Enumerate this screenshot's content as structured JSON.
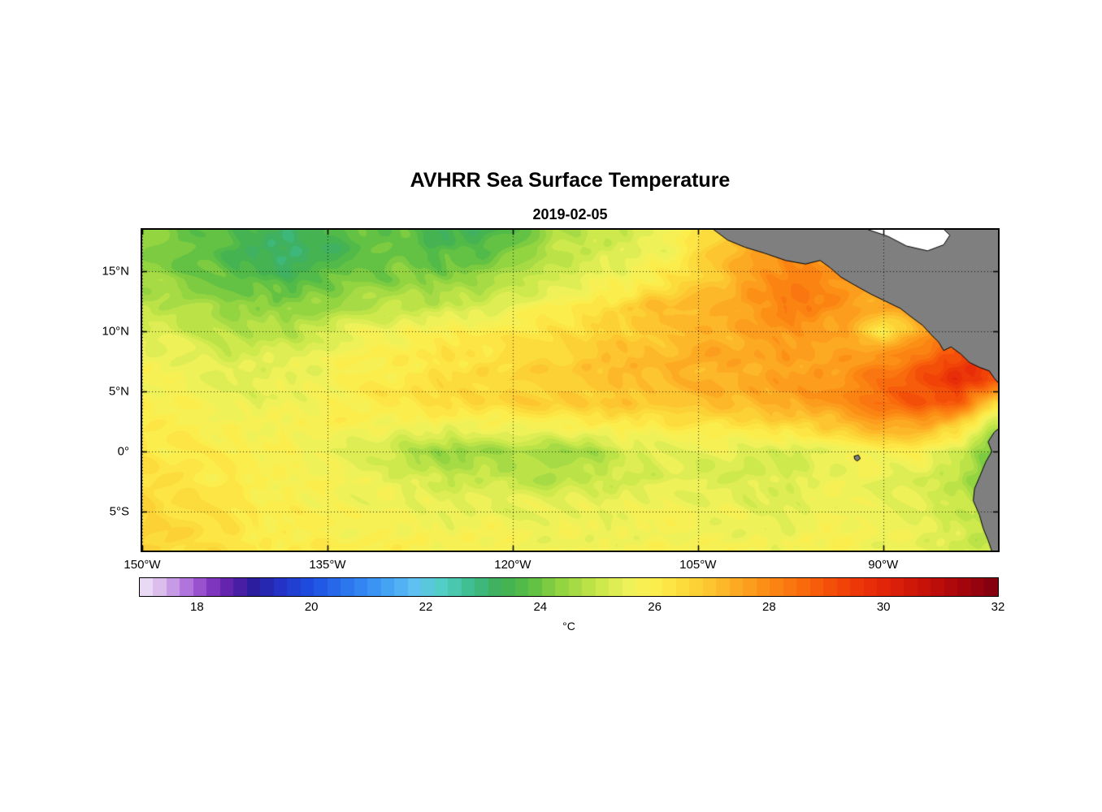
{
  "chart_data": {
    "type": "heatmap",
    "title": "AVHRR Sea Surface Temperature",
    "date": "2019-02-05",
    "x_axis": {
      "ticks": [
        -150,
        -135,
        -120,
        -105,
        -90
      ],
      "tick_labels": [
        "150°W",
        "135°W",
        "120°W",
        "105°W",
        "90°W"
      ],
      "lim": [
        -150,
        -80.7
      ]
    },
    "y_axis": {
      "ticks": [
        15,
        10,
        5,
        0,
        -5
      ],
      "tick_labels": [
        "15°N",
        "10°N",
        "5°N",
        "0°",
        "5°S"
      ],
      "lim": [
        -8.25,
        18.45
      ]
    },
    "colorbar": {
      "min": 17,
      "max": 32,
      "levels": 64,
      "ticks": [
        18,
        20,
        22,
        24,
        26,
        28,
        30,
        32
      ],
      "label": "°C"
    },
    "colormap": [
      [
        17.0,
        "#EFE6F7"
      ],
      [
        17.4,
        "#D9B8EC"
      ],
      [
        17.8,
        "#B377DE"
      ],
      [
        18.2,
        "#8A3BC4"
      ],
      [
        18.6,
        "#5B1FA8"
      ],
      [
        19.0,
        "#2A1E9E"
      ],
      [
        19.5,
        "#2334C8"
      ],
      [
        20.0,
        "#1D4FE0"
      ],
      [
        20.6,
        "#2B74EE"
      ],
      [
        21.2,
        "#3E9AF5"
      ],
      [
        21.8,
        "#5FC0F2"
      ],
      [
        22.3,
        "#52CFC4"
      ],
      [
        22.8,
        "#3DBD8C"
      ],
      [
        23.3,
        "#3FAF58"
      ],
      [
        23.8,
        "#57BE44"
      ],
      [
        24.3,
        "#8CD140"
      ],
      [
        25.0,
        "#C8E84A"
      ],
      [
        25.6,
        "#F2F25A"
      ],
      [
        26.0,
        "#FBEE4D"
      ],
      [
        26.5,
        "#FCDC3C"
      ],
      [
        27.0,
        "#FDC32E"
      ],
      [
        27.5,
        "#FDA621"
      ],
      [
        28.0,
        "#FC8A14"
      ],
      [
        28.6,
        "#F96A0D"
      ],
      [
        29.2,
        "#F34708"
      ],
      [
        30.0,
        "#E22408"
      ],
      [
        30.8,
        "#C4100A"
      ],
      [
        31.4,
        "#A3050C"
      ],
      [
        32.0,
        "#7E0010"
      ]
    ],
    "grid": {
      "lons": [
        -150,
        -147,
        -144,
        -141,
        -138,
        -135,
        -132,
        -129,
        -126,
        -123,
        -120,
        -117,
        -114,
        -111,
        -108,
        -105,
        -102,
        -99,
        -96,
        -93,
        -90,
        -87,
        -84,
        -81
      ],
      "lats": [
        18.45,
        16,
        14,
        12,
        10,
        8,
        6,
        4,
        2,
        0,
        -2,
        -4,
        -6,
        -8.25
      ],
      "sst": [
        [
          24.5,
          24.2,
          23.9,
          23.5,
          23.2,
          23.5,
          23.8,
          23.8,
          23.4,
          23.3,
          23.8,
          24.6,
          25.0,
          25.2,
          25.4,
          26.2,
          27.0,
          27.5,
          27.6,
          27.6,
          27.8,
          28.0,
          28.0,
          28.0
        ],
        [
          24.4,
          24.1,
          23.8,
          23.3,
          23.0,
          23.4,
          23.8,
          24.0,
          23.8,
          24.0,
          24.4,
          24.9,
          25.2,
          25.4,
          25.7,
          26.4,
          27.2,
          27.7,
          28.0,
          27.8,
          27.6,
          27.9,
          28.0,
          28.1
        ],
        [
          24.7,
          24.4,
          24.1,
          23.9,
          23.7,
          24.0,
          24.2,
          24.4,
          24.3,
          24.6,
          25.0,
          25.3,
          25.6,
          25.8,
          26.2,
          26.7,
          27.3,
          27.9,
          28.2,
          27.8,
          27.5,
          27.7,
          27.9,
          28.0
        ],
        [
          25.0,
          24.8,
          24.5,
          24.3,
          24.2,
          24.5,
          24.8,
          25.0,
          25.0,
          25.3,
          25.6,
          25.9,
          26.2,
          26.5,
          27.3,
          27.1,
          27.3,
          28.1,
          28.3,
          27.8,
          27.5,
          27.7,
          27.9,
          28.0
        ],
        [
          25.4,
          25.2,
          25.0,
          24.8,
          24.8,
          25.2,
          25.5,
          25.7,
          25.8,
          26.0,
          26.2,
          26.4,
          26.6,
          26.8,
          27.0,
          27.2,
          27.4,
          27.6,
          27.6,
          27.5,
          25.9,
          27.6,
          27.9,
          28.2
        ],
        [
          25.6,
          25.5,
          25.3,
          25.2,
          25.3,
          25.6,
          25.9,
          26.1,
          26.2,
          26.4,
          26.5,
          26.6,
          26.8,
          27.0,
          27.2,
          27.3,
          27.4,
          27.5,
          27.6,
          27.7,
          27.9,
          28.4,
          29.2,
          29.4
        ],
        [
          25.8,
          25.6,
          25.5,
          25.4,
          25.5,
          25.8,
          26.0,
          26.2,
          26.3,
          26.5,
          26.6,
          26.7,
          26.9,
          27.0,
          27.2,
          27.3,
          27.4,
          27.5,
          27.7,
          27.9,
          28.3,
          29.1,
          29.7,
          29.4
        ],
        [
          25.9,
          25.8,
          25.6,
          25.5,
          25.6,
          25.9,
          26.1,
          26.3,
          26.4,
          26.5,
          26.6,
          26.7,
          26.8,
          26.9,
          27.0,
          27.1,
          27.2,
          27.4,
          27.6,
          28.0,
          28.5,
          28.9,
          28.8,
          26.5
        ],
        [
          26.0,
          25.9,
          25.8,
          25.7,
          25.8,
          25.9,
          25.8,
          25.7,
          25.6,
          25.6,
          25.6,
          25.7,
          25.8,
          25.9,
          26.0,
          26.2,
          26.3,
          26.4,
          26.6,
          27.0,
          27.4,
          27.3,
          26.4,
          24.8
        ],
        [
          26.2,
          26.1,
          26.0,
          25.9,
          25.8,
          25.6,
          25.3,
          24.9,
          24.4,
          24.4,
          24.7,
          24.4,
          24.5,
          25.2,
          25.4,
          25.5,
          25.4,
          25.3,
          25.2,
          25.6,
          25.8,
          25.9,
          25.2,
          23.8
        ],
        [
          26.3,
          26.2,
          26.1,
          26.0,
          25.9,
          25.8,
          25.6,
          25.3,
          25.0,
          24.9,
          24.8,
          24.7,
          24.9,
          25.1,
          25.3,
          25.4,
          25.3,
          25.2,
          25.4,
          25.6,
          25.4,
          25.2,
          24.8,
          23.9
        ],
        [
          26.5,
          26.4,
          26.2,
          26.0,
          25.9,
          25.8,
          25.7,
          25.6,
          25.5,
          25.4,
          25.4,
          25.3,
          25.4,
          25.5,
          25.6,
          25.6,
          25.5,
          25.4,
          25.5,
          25.6,
          25.5,
          25.3,
          25.0,
          24.3
        ],
        [
          26.6,
          26.5,
          26.3,
          26.1,
          26.0,
          25.9,
          25.8,
          25.7,
          25.7,
          25.6,
          25.6,
          25.5,
          25.6,
          25.6,
          25.7,
          25.7,
          25.6,
          25.5,
          25.6,
          25.7,
          25.6,
          25.4,
          25.2,
          24.7
        ],
        [
          26.8,
          26.6,
          26.4,
          26.2,
          26.1,
          26.0,
          25.9,
          25.9,
          25.8,
          25.8,
          25.7,
          25.7,
          25.7,
          25.8,
          25.8,
          25.8,
          25.7,
          25.6,
          25.7,
          25.8,
          25.7,
          25.5,
          25.3,
          24.9
        ]
      ]
    },
    "land": {
      "fill": "#7F7F7F",
      "outline": "#000000",
      "polygons": {
        "central_america": [
          [
            -103.9,
            18.6
          ],
          [
            -102.6,
            17.6
          ],
          [
            -101.2,
            17.0
          ],
          [
            -99.6,
            16.5
          ],
          [
            -97.9,
            15.9
          ],
          [
            -96.3,
            15.6
          ],
          [
            -95.1,
            15.9
          ],
          [
            -94.3,
            15.3
          ],
          [
            -93.4,
            14.5
          ],
          [
            -92.4,
            13.9
          ],
          [
            -91.0,
            13.1
          ],
          [
            -89.8,
            12.5
          ],
          [
            -88.6,
            11.9
          ],
          [
            -87.6,
            11.1
          ],
          [
            -86.8,
            10.5
          ],
          [
            -86.1,
            9.7
          ],
          [
            -85.5,
            9.1
          ],
          [
            -85.1,
            8.4
          ],
          [
            -84.5,
            8.7
          ],
          [
            -83.7,
            8.1
          ],
          [
            -83.0,
            7.4
          ],
          [
            -82.2,
            7.0
          ],
          [
            -81.4,
            6.7
          ],
          [
            -81.0,
            6.1
          ],
          [
            -80.5,
            5.5
          ],
          [
            -80.2,
            5.5
          ],
          [
            -80.2,
            18.6
          ]
        ],
        "south_america": [
          [
            -80.2,
            2.3
          ],
          [
            -81.0,
            1.6
          ],
          [
            -81.5,
            0.8
          ],
          [
            -81.2,
            0.0
          ],
          [
            -81.7,
            -0.9
          ],
          [
            -82.1,
            -1.9
          ],
          [
            -82.6,
            -3.1
          ],
          [
            -82.7,
            -4.1
          ],
          [
            -82.2,
            -5.3
          ],
          [
            -81.9,
            -6.4
          ],
          [
            -81.5,
            -7.4
          ],
          [
            -81.1,
            -8.6
          ],
          [
            -80.2,
            -8.6
          ]
        ],
        "galapagos_island": [
          [
            -92.35,
            -0.4
          ],
          [
            -92.0,
            -0.3
          ],
          [
            -91.85,
            -0.6
          ],
          [
            -92.1,
            -0.8
          ],
          [
            -92.3,
            -0.65
          ]
        ]
      },
      "no_data": {
        "fill": "#FFFFFF",
        "polygons": {
          "caribbean": [
            [
              -91.6,
              18.6
            ],
            [
              -89.6,
              17.9
            ],
            [
              -88.1,
              17.1
            ],
            [
              -86.4,
              16.7
            ],
            [
              -85.1,
              17.2
            ],
            [
              -84.6,
              18.0
            ],
            [
              -85.2,
              18.6
            ]
          ]
        }
      }
    }
  }
}
